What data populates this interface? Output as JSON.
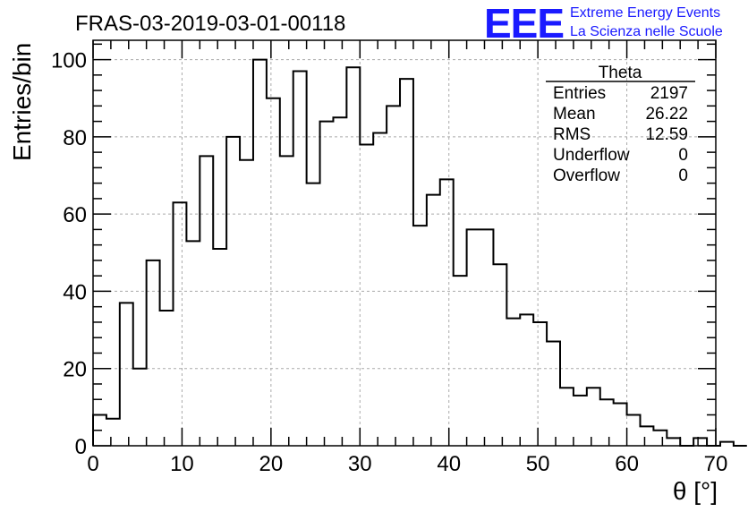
{
  "chart_data": {
    "type": "histogram",
    "title": "FRAS-03-2019-03-01-00118",
    "xlabel": "θ [°]",
    "ylabel": "Entries/bin",
    "xlim": [
      0,
      70
    ],
    "ylim": [
      0,
      105
    ],
    "x_ticks": [
      0,
      10,
      20,
      30,
      40,
      50,
      60,
      70
    ],
    "y_ticks": [
      0,
      20,
      40,
      60,
      80,
      100
    ],
    "grid": true,
    "bin_width": 1.5,
    "bin_start": 0,
    "values": [
      8,
      7,
      37,
      20,
      48,
      35,
      63,
      53,
      75,
      51,
      80,
      74,
      100,
      90,
      75,
      97,
      68,
      84,
      85,
      98,
      78,
      81,
      88,
      95,
      57,
      65,
      69,
      44,
      56,
      56,
      47,
      33,
      34,
      32,
      27,
      15,
      13,
      15,
      12,
      11,
      8,
      5,
      4,
      2,
      0,
      2,
      0,
      1,
      0
    ],
    "stats_box": {
      "name": "Theta",
      "rows": [
        {
          "label": "Entries",
          "value": "2197"
        },
        {
          "label": "Mean",
          "value": "26.22"
        },
        {
          "label": "RMS",
          "value": "12.59"
        },
        {
          "label": "Underflow",
          "value": "0"
        },
        {
          "label": "Overflow",
          "value": "0"
        }
      ]
    }
  },
  "logo": {
    "mark": "EEE",
    "line1": "Extreme Energy Events",
    "line2": "La Scienza nelle Scuole"
  },
  "colors": {
    "histogram": "#000000",
    "grid": "#aaaaaa",
    "logo": "#1a1aff"
  }
}
